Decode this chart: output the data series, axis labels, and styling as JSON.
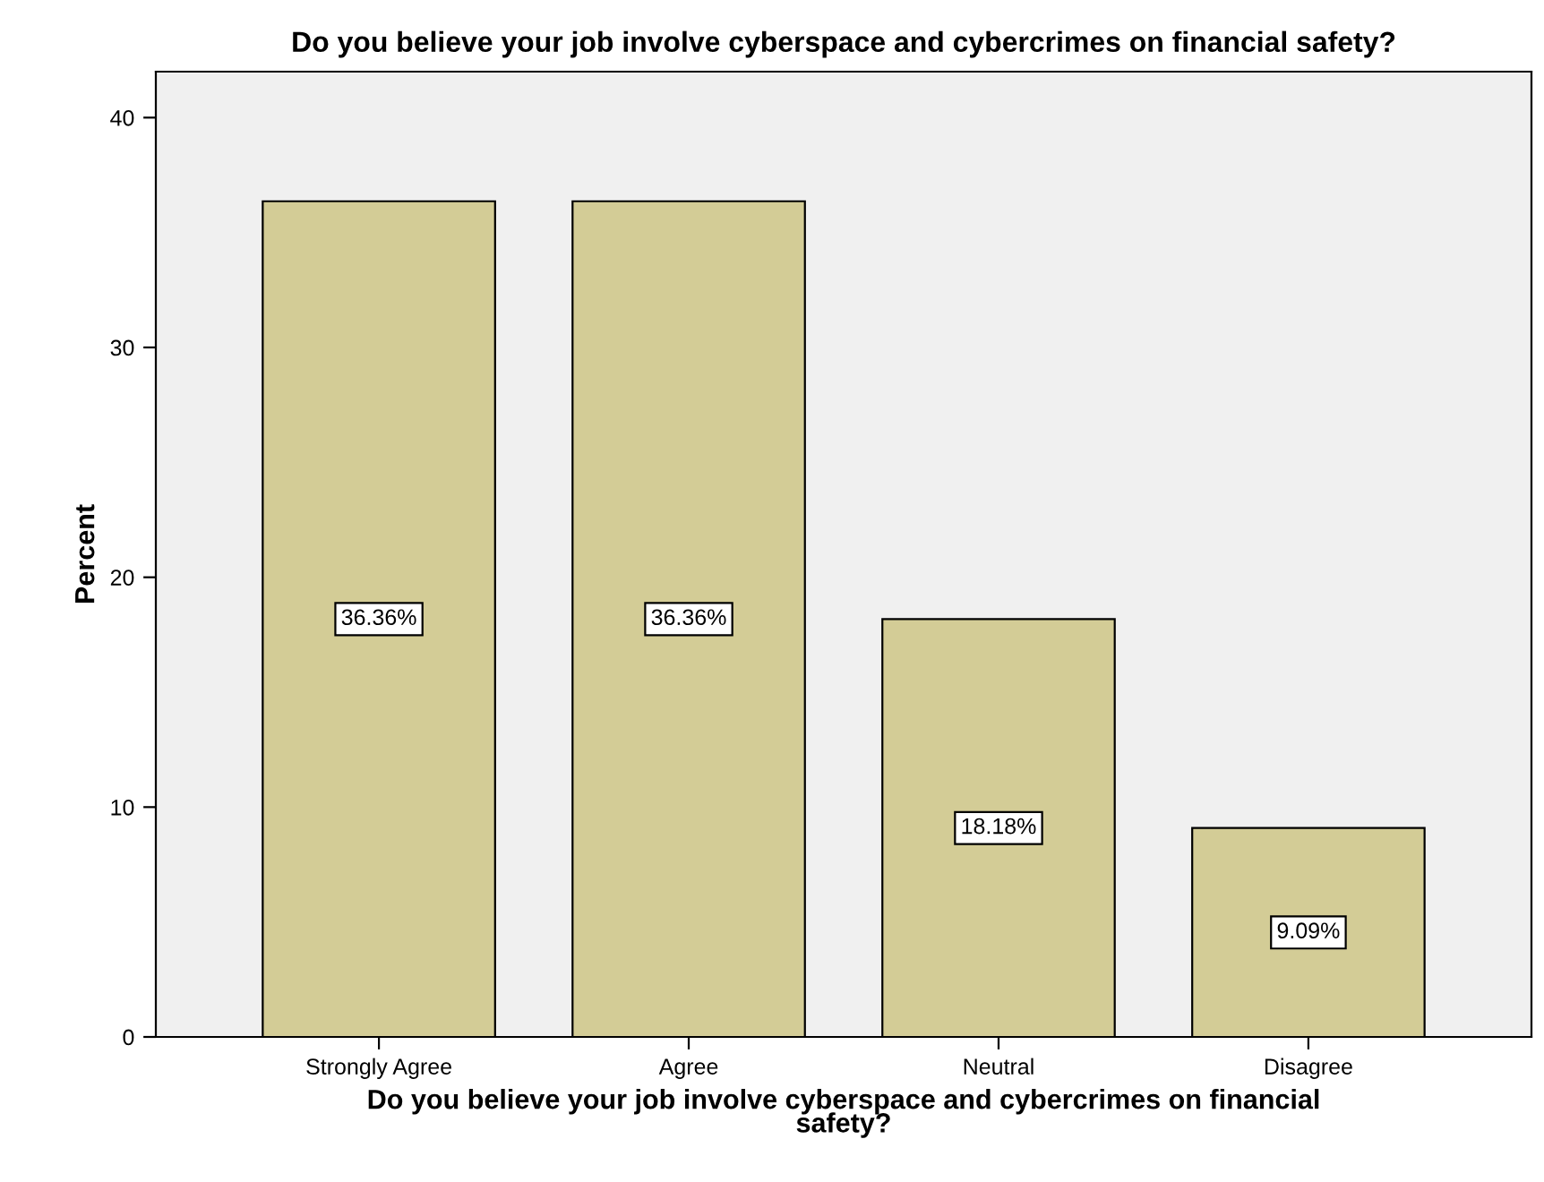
{
  "chart_data": {
    "type": "bar",
    "title": "Do you believe your job involve cyberspace and cybercrimes on financial safety?",
    "xlabel": "Do you believe your job involve cyberspace and cybercrimes on financial\nsafety?",
    "ylabel": "Percent",
    "categories": [
      "Strongly Agree",
      "Agree",
      "Neutral",
      "Disagree"
    ],
    "values": [
      36.36,
      36.36,
      18.18,
      9.09
    ],
    "value_labels": [
      "36.36%",
      "36.36%",
      "18.18%",
      "9.09%"
    ],
    "color": "#d3cc96",
    "ylim": [
      0,
      42
    ],
    "yticks": [
      0,
      10,
      20,
      30,
      40
    ],
    "grid": false,
    "legend": false
  }
}
